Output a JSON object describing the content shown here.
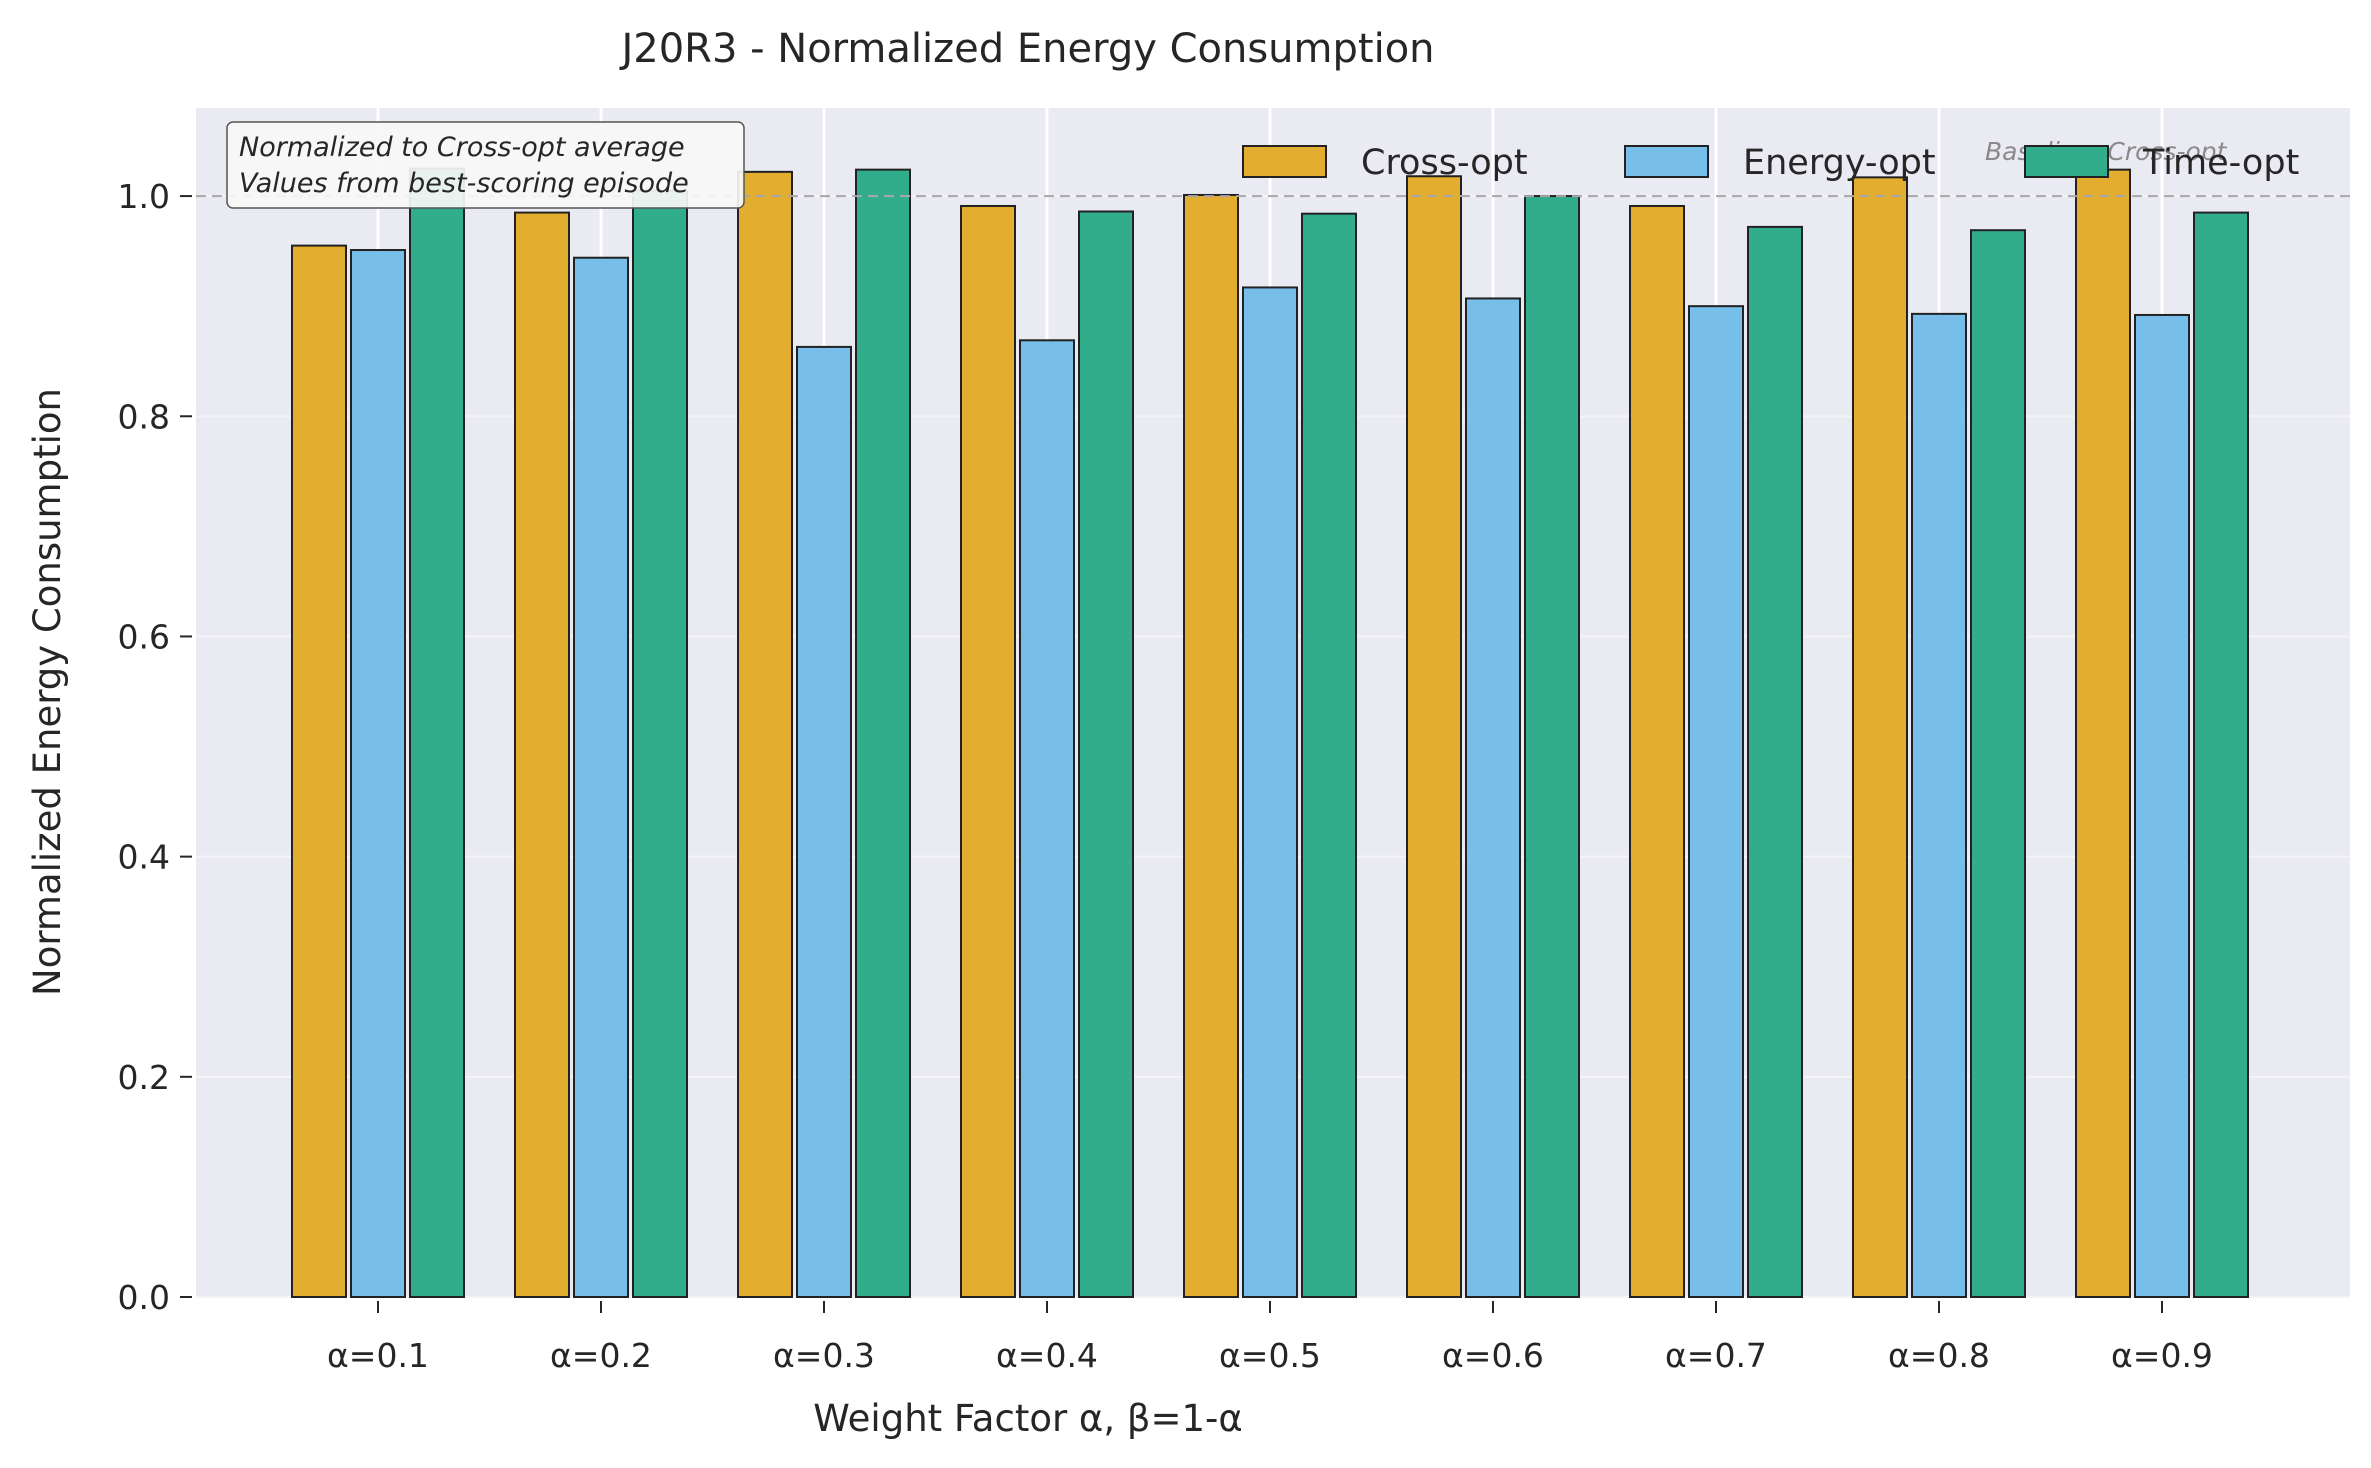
{
  "chart_data": {
    "type": "bar",
    "title": "J20R3 - Normalized Energy Consumption",
    "xlabel": "Weight Factor α, β=1-α",
    "ylabel": "Normalized Energy Consumption",
    "ylim": [
      0,
      1.08
    ],
    "yticks": [
      "0.0",
      "0.2",
      "0.4",
      "0.6",
      "0.8",
      "1.0"
    ],
    "categories": [
      "α=0.1",
      "α=0.2",
      "α=0.3",
      "α=0.4",
      "α=0.5",
      "α=0.6",
      "α=0.7",
      "α=0.8",
      "α=0.9"
    ],
    "series": [
      {
        "name": "Cross-opt",
        "color": "#E3AE2F",
        "values": [
          0.955,
          0.985,
          1.022,
          0.991,
          1.001,
          1.018,
          0.991,
          1.017,
          1.024
        ]
      },
      {
        "name": "Energy-opt",
        "color": "#77BEEA",
        "values": [
          0.951,
          0.944,
          0.863,
          0.869,
          0.917,
          0.907,
          0.9,
          0.893,
          0.892
        ]
      },
      {
        "name": "Time-opt",
        "color": "#31AD8C",
        "values": [
          1.025,
          1.005,
          1.024,
          0.986,
          0.984,
          1.0,
          0.972,
          0.969,
          0.985
        ]
      }
    ],
    "baseline": {
      "value": 1.0,
      "label": "Baseline: Cross-opt"
    },
    "annotation": [
      "Normalized to Cross-opt average",
      "Values from best-scoring episode"
    ],
    "grid": true,
    "legend_placement": "top-right"
  }
}
